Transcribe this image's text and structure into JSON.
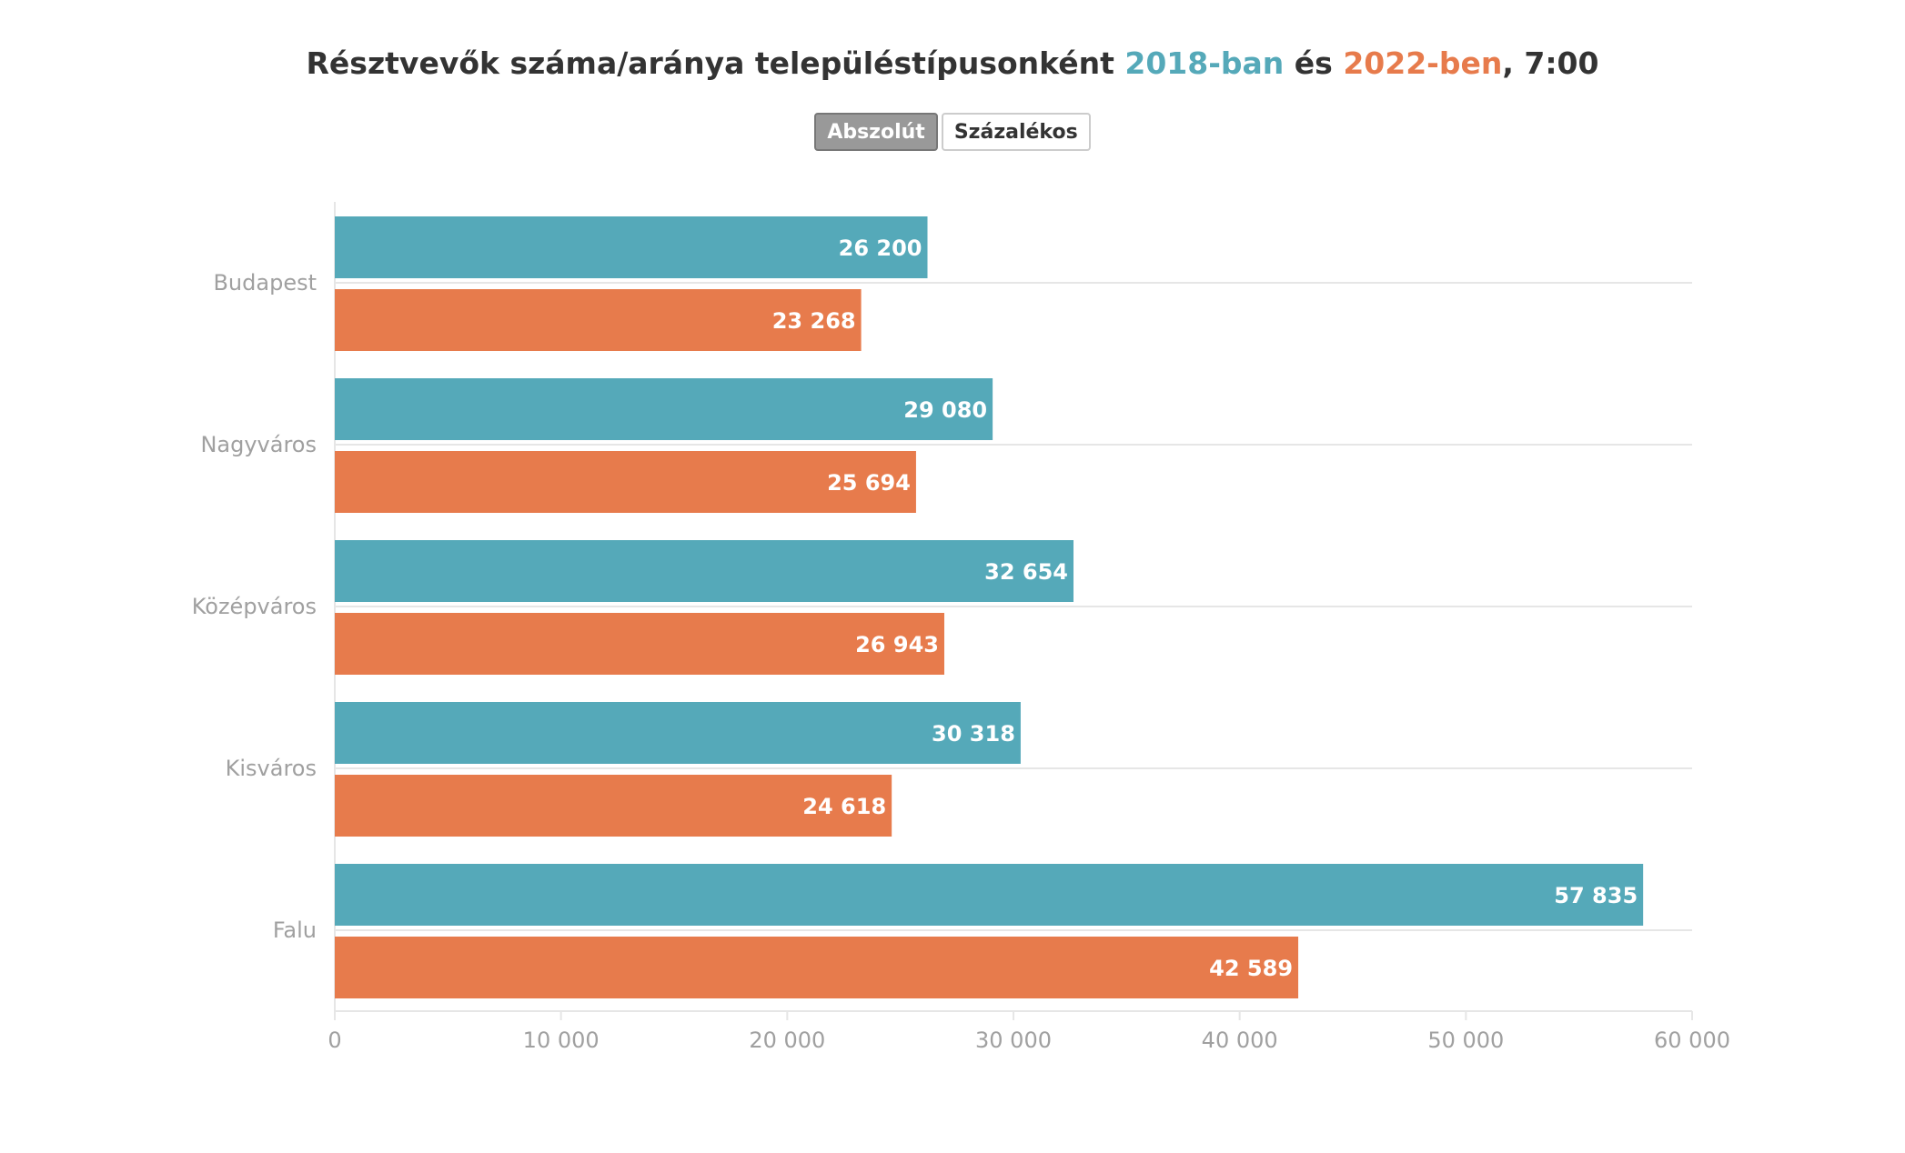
{
  "title": {
    "prefix": "Résztvevők száma/aránya településtípusonként ",
    "year1": "2018-ban",
    "middle": " és ",
    "year2": "2022-ben",
    "suffix": ", 7:00"
  },
  "toggle": {
    "absolute_label": "Abszolút",
    "percent_label": "Százalékos",
    "selected": "Abszolút"
  },
  "colors": {
    "series_2018": "#55a9b9",
    "series_2022": "#e77b4c",
    "axis_text": "#a0a0a0",
    "grid": "#e6e6e6"
  },
  "chart_data": {
    "type": "bar",
    "orientation": "horizontal",
    "categories": [
      "Budapest",
      "Nagyváros",
      "Középváros",
      "Kisváros",
      "Falu"
    ],
    "series": [
      {
        "name": "2018-ban",
        "values": [
          26200,
          29080,
          32654,
          30318,
          57835
        ]
      },
      {
        "name": "2022-ben",
        "values": [
          23268,
          25694,
          26943,
          24618,
          42589
        ]
      }
    ],
    "data_labels": [
      [
        "26 200",
        "29 080",
        "32 654",
        "30 318",
        "57 835"
      ],
      [
        "23 268",
        "25 694",
        "26 943",
        "24 618",
        "42 589"
      ]
    ],
    "xlim": [
      0,
      60000
    ],
    "x_ticks": [
      0,
      10000,
      20000,
      30000,
      40000,
      50000,
      60000
    ],
    "x_tick_labels": [
      "0",
      "10 000",
      "20 000",
      "30 000",
      "40 000",
      "50 000",
      "60 000"
    ],
    "grid": true
  }
}
